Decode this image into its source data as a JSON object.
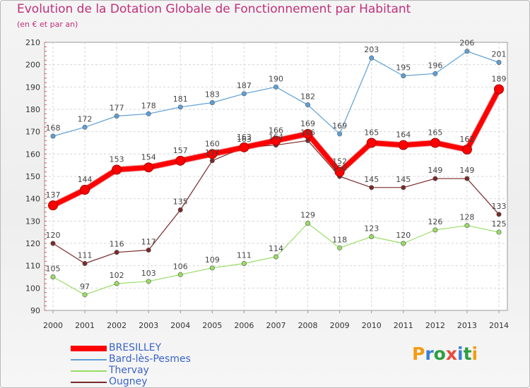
{
  "title": "Evolution de la Dotation Globale de Fonctionnement par Habitant",
  "subtitle": "(en € et par an)",
  "logo": {
    "text": "Proxiti",
    "colors": [
      "#f39c12",
      "#3a7fd5",
      "#2e9e3f",
      "#e74c3c",
      "#3a7fd5",
      "#2e9e3f",
      "#f39c12"
    ]
  },
  "chart_data": {
    "type": "line",
    "title": "Evolution de la Dotation Globale de Fonctionnement par Habitant",
    "subtitle": "(en € et par an)",
    "xlabel": "",
    "ylabel": "",
    "x": [
      "2000",
      "2001",
      "2002",
      "2003",
      "2004",
      "2005",
      "2006",
      "2007",
      "2008",
      "2009",
      "2010",
      "2011",
      "2012",
      "2013",
      "2014"
    ],
    "ylim": [
      90,
      210
    ],
    "yticks": [
      90,
      100,
      110,
      120,
      130,
      140,
      150,
      160,
      170,
      180,
      190,
      200,
      210
    ],
    "grid": "horizontal and vertical dashed",
    "legend_position": "bottom-left",
    "series": [
      {
        "name": "BRESILLEY",
        "color": "#ff0000",
        "values": [
          137,
          144,
          153,
          154,
          157,
          160,
          163,
          166,
          169,
          152,
          165,
          164,
          165,
          162,
          189
        ]
      },
      {
        "name": "Bard-lès-Pesmes",
        "color": "#5fa0d6",
        "values": [
          168,
          172,
          177,
          178,
          181,
          183,
          187,
          190,
          182,
          169,
          203,
          195,
          196,
          206,
          201
        ]
      },
      {
        "name": "Thervay",
        "color": "#99dd66",
        "values": [
          105,
          97,
          102,
          103,
          106,
          109,
          111,
          114,
          129,
          118,
          123,
          120,
          126,
          128,
          125
        ]
      },
      {
        "name": "Ougney",
        "color": "#7a2a2a",
        "values": [
          120,
          111,
          116,
          117,
          135,
          157,
          163,
          164,
          166,
          150,
          145,
          145,
          149,
          149,
          133
        ]
      }
    ]
  }
}
